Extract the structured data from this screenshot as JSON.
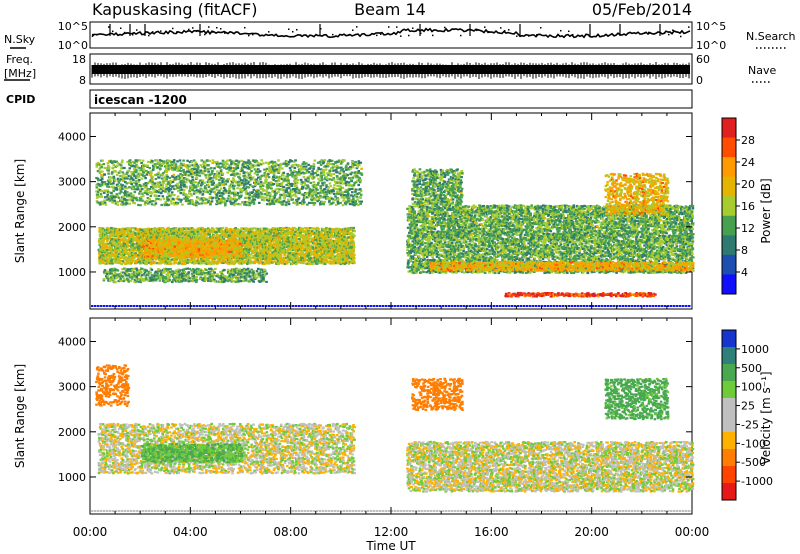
{
  "header": {
    "station": "Kapuskasing (fitACF)",
    "beam": "Beam 14",
    "date": "05/Feb/2014"
  },
  "noise_panel": {
    "left_label": "N.Sky",
    "right_label": "N.Search",
    "ticks": [
      "10^5",
      "10^0"
    ]
  },
  "freq_panel": {
    "left_label_1": "Freq.",
    "left_label_2": "[MHz]",
    "left_ticks": [
      "18",
      "8"
    ],
    "right_label": "Nave",
    "right_ticks": [
      "60",
      "0"
    ]
  },
  "cpid_panel": {
    "label": "CPID",
    "program": "icescan -1200"
  },
  "chart_data": [
    {
      "type": "heatmap",
      "title": "",
      "quantity": "Power",
      "ylabel": "Slant Range [km]",
      "colorbar_label": "Power [dB]",
      "colorbar_ticks": [
        "28",
        "24",
        "20",
        "16",
        "12",
        "8",
        "4"
      ],
      "colorbar_colors": [
        "#e02020",
        "#ff4d00",
        "#ff9a00",
        "#e3b400",
        "#a6cc30",
        "#46a050",
        "#2f7a70",
        "#1e4fb0",
        "#1010ff"
      ],
      "xlabel": "Time UT",
      "x_ticks": [
        "00:00",
        "04:00",
        "08:00",
        "12:00",
        "16:00",
        "20:00",
        "00:00"
      ],
      "y_ticks": [
        "4000",
        "3000",
        "2000",
        "1000"
      ],
      "xlim_hours": [
        0,
        24
      ],
      "ylim_km": [
        180,
        4520
      ],
      "regions": [
        {
          "t0": 0.2,
          "t1": 10.8,
          "r0": 2500,
          "r1": 3500,
          "level": 12,
          "density": 0.35
        },
        {
          "t0": 0.3,
          "t1": 10.5,
          "r0": 1200,
          "r1": 2000,
          "level": 16,
          "density": 0.8
        },
        {
          "t0": 2.0,
          "t1": 6.0,
          "r0": 1350,
          "r1": 1750,
          "level": 20,
          "density": 0.7
        },
        {
          "t0": 0.5,
          "t1": 7.0,
          "r0": 800,
          "r1": 1100,
          "level": 12,
          "density": 0.5
        },
        {
          "t0": 12.6,
          "t1": 24.0,
          "r0": 1000,
          "r1": 2500,
          "level": 12,
          "density": 0.6
        },
        {
          "t0": 13.5,
          "t1": 24.0,
          "r0": 1050,
          "r1": 1250,
          "level": 20,
          "density": 0.75
        },
        {
          "t0": 16.5,
          "t1": 22.5,
          "r0": 480,
          "r1": 560,
          "level": 28,
          "density": 0.7
        },
        {
          "t0": 12.8,
          "t1": 14.8,
          "r0": 2500,
          "r1": 3300,
          "level": 12,
          "density": 0.5
        },
        {
          "t0": 20.5,
          "t1": 23.0,
          "r0": 2300,
          "r1": 3200,
          "level": 20,
          "density": 0.45
        }
      ]
    },
    {
      "type": "heatmap",
      "title": "",
      "quantity": "Velocity",
      "ylabel": "Slant Range [km]",
      "colorbar_label": "Velocity [m s⁻¹]",
      "colorbar_ticks": [
        "1000",
        "500",
        "100",
        "25",
        "-25",
        "-100",
        "-500",
        "-1000"
      ],
      "colorbar_colors": [
        "#1535cc",
        "#2f7f7a",
        "#49a850",
        "#6ecb3a",
        "#c0c0c0",
        "#c0c0c0",
        "#ffb100",
        "#ff7d00",
        "#ff4400",
        "#e81818"
      ],
      "xlabel": "Time UT",
      "x_ticks": [
        "00:00",
        "04:00",
        "08:00",
        "12:00",
        "16:00",
        "20:00",
        "00:00"
      ],
      "y_ticks": [
        "4000",
        "3000",
        "2000",
        "1000"
      ],
      "xlim_hours": [
        0,
        24
      ],
      "ylim_km": [
        180,
        4520
      ],
      "regions": [
        {
          "t0": 0.3,
          "t1": 10.5,
          "r0": 1100,
          "r1": 2200,
          "level": 0,
          "density": 0.45
        },
        {
          "t0": 2.0,
          "t1": 6.0,
          "r0": 1350,
          "r1": 1750,
          "level": 100,
          "density": 0.6
        },
        {
          "t0": 0.2,
          "t1": 1.5,
          "r0": 2600,
          "r1": 3500,
          "level": -300,
          "density": 0.35
        },
        {
          "t0": 12.6,
          "t1": 24.0,
          "r0": 700,
          "r1": 1800,
          "level": 0,
          "density": 0.55
        },
        {
          "t0": 12.8,
          "t1": 14.8,
          "r0": 2500,
          "r1": 3200,
          "level": -200,
          "density": 0.4
        },
        {
          "t0": 20.5,
          "t1": 23.0,
          "r0": 2300,
          "r1": 3200,
          "level": 150,
          "density": 0.45
        }
      ]
    }
  ]
}
